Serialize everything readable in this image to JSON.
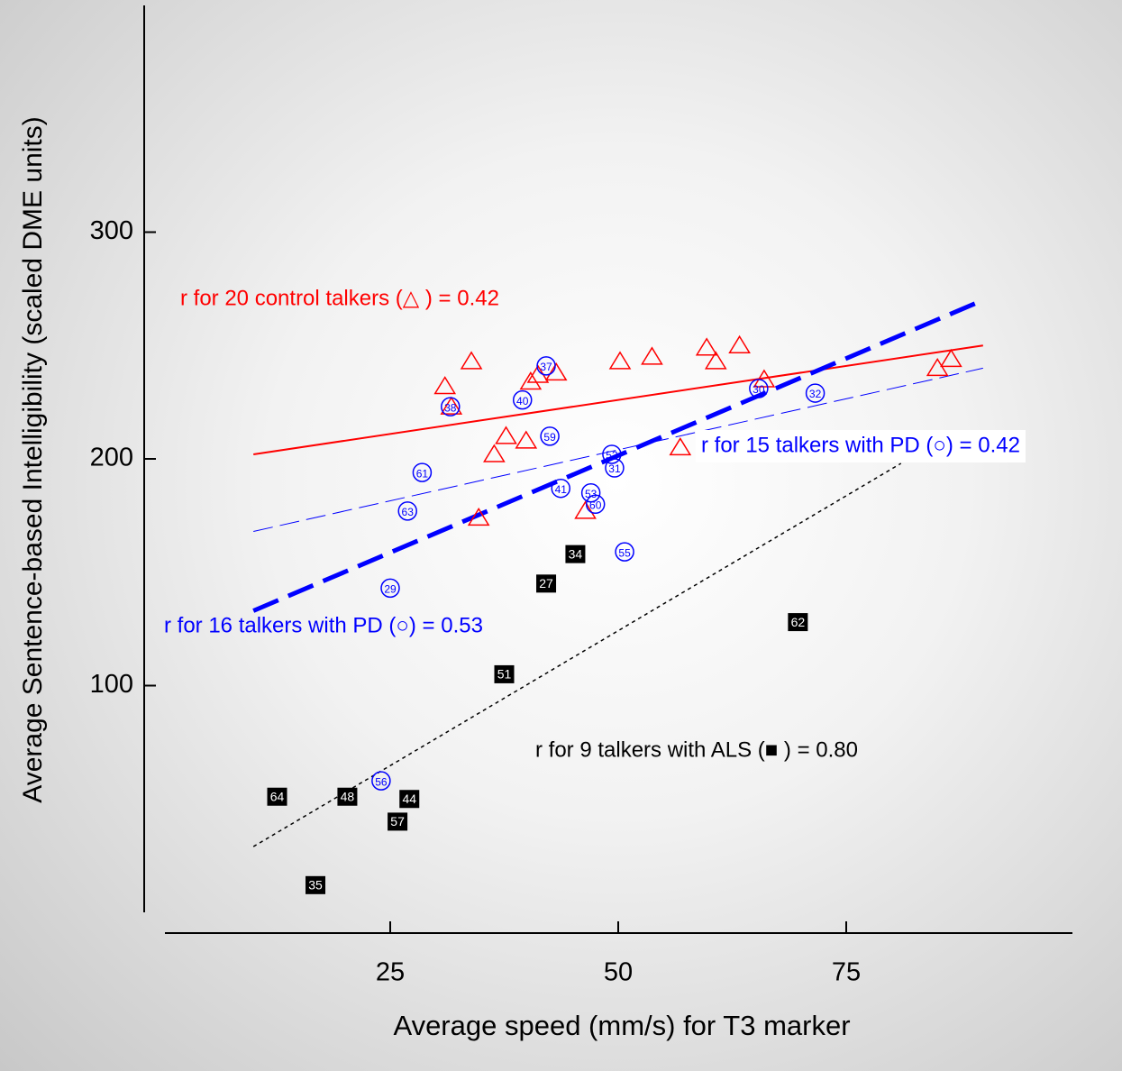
{
  "chart_data": {
    "type": "scatter",
    "x_label": "Average speed (mm/s) for T3 marker",
    "y_label": "Average Sentence-based Intelligibility (scaled DME units)",
    "xlim": [
      0,
      100
    ],
    "ylim": [
      0,
      400
    ],
    "xticks": [
      25,
      50,
      75
    ],
    "yticks": [
      100,
      200,
      300
    ],
    "series": [
      {
        "marker": "triangle",
        "color": "#ff0000",
        "x": [
          31.0,
          33.9,
          31.7,
          36.4,
          37.7,
          39.9,
          40.4,
          41.2,
          43.2,
          50.2,
          53.7,
          59.7,
          60.7,
          63.3,
          66.0,
          56.8,
          46.4,
          34.7,
          85.0,
          86.5
        ],
        "y": [
          232,
          243,
          223,
          202,
          210,
          208,
          234,
          237,
          238,
          243,
          245,
          249,
          243,
          250,
          235,
          205,
          177,
          174,
          240,
          244
        ]
      },
      {
        "marker": "circle",
        "color": "#0000ff",
        "x": [
          42.1,
          31.6,
          39.5,
          42.5,
          49.3,
          49.6,
          28.5,
          43.7,
          47.0,
          47.5,
          26.9,
          50.7,
          25.0,
          65.4,
          71.6,
          24.0
        ],
        "y": [
          241,
          223,
          226,
          210,
          202,
          196,
          194,
          187,
          185,
          180,
          177,
          159,
          143,
          231,
          229,
          58
        ],
        "labels": [
          "37",
          "38",
          "40",
          "59",
          "52",
          "31",
          "61",
          "41",
          "53",
          "60",
          "63",
          "55",
          "29",
          "30",
          "32",
          "56"
        ]
      },
      {
        "marker": "square",
        "color": "#000000",
        "x": [
          45.3,
          42.1,
          69.7,
          37.5,
          12.6,
          20.3,
          27.1,
          25.8,
          16.8
        ],
        "y": [
          158,
          145,
          128,
          105,
          51,
          51,
          50,
          40,
          12
        ],
        "labels": [
          "34",
          "27",
          "62",
          "51",
          "64",
          "48",
          "44",
          "57",
          "35"
        ]
      }
    ],
    "fit_lines": [
      {
        "color": "#ff0000",
        "style": "solid",
        "width": 2,
        "x": [
          10,
          90
        ],
        "y": [
          202,
          250
        ]
      },
      {
        "color": "#0000ff",
        "style": "dash",
        "width": 1,
        "x": [
          10,
          90
        ],
        "y": [
          168,
          240
        ]
      },
      {
        "color": "#0000ff",
        "style": "longdash",
        "width": 5,
        "x": [
          10,
          90
        ],
        "y": [
          133,
          270
        ]
      },
      {
        "color": "#000000",
        "style": "dot",
        "width": 1.5,
        "x": [
          10,
          81
        ],
        "y": [
          29,
          198
        ]
      }
    ],
    "annotations": [
      {
        "text": "r for 20 control talkers (△ ) = 0.42",
        "color": "#ff0000"
      },
      {
        "text": "r for 15 talkers with PD (○) = 0.42",
        "color": "#0000ff"
      },
      {
        "text": "r for 16 talkers with PD (○) = 0.53",
        "color": "#0000ff"
      },
      {
        "text": "r for 9 talkers with ALS (■ ) = 0.80",
        "color": "#000000"
      }
    ]
  }
}
